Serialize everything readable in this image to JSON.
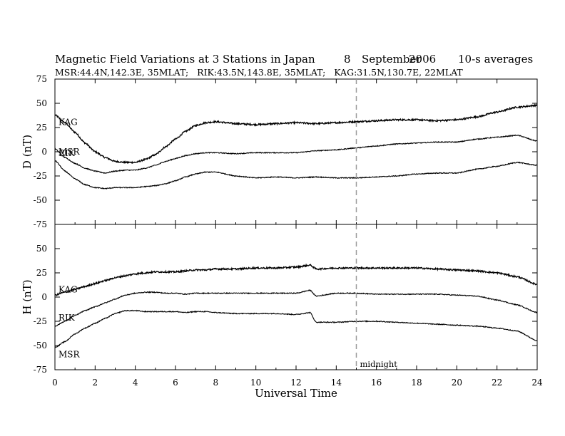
{
  "header": {
    "title": "Magnetic Field Variations at 3 Stations in Japan",
    "date_day": "8",
    "date_month": "September",
    "date_year": "2006",
    "averaging": "10-s averages",
    "stations_line": "MSR:44.4N,142.3E, 35MLAT;   RIK:43.5N,143.8E, 35MLAT;   KAG:31.5N,130.7E, 22MLAT"
  },
  "x_axis": {
    "label": "Universal Time",
    "ticks": [
      "0",
      "2",
      "4",
      "6",
      "8",
      "10",
      "12",
      "14",
      "16",
      "18",
      "20",
      "22",
      "24"
    ]
  },
  "y_ticks": [
    "75",
    "50",
    "25",
    "0",
    "-25",
    "-50",
    "-75"
  ],
  "annotation": {
    "label": "midnight",
    "x_value": 15
  },
  "colors": {
    "lines": "#000000",
    "midnight_marker": "#999999"
  },
  "chart_data": [
    {
      "type": "line",
      "ylabel": "D (nT)",
      "xlim": [
        0,
        24
      ],
      "ylim": [
        -75,
        75
      ],
      "grid": false,
      "series": [
        {
          "name": "KAG",
          "x": [
            0,
            0.5,
            1,
            1.5,
            2,
            2.5,
            3,
            3.5,
            4,
            4.5,
            5,
            5.5,
            6,
            6.5,
            7,
            7.5,
            8,
            9,
            10,
            11,
            12,
            13,
            14,
            15,
            16,
            17,
            18,
            19,
            20,
            21,
            22,
            23,
            24
          ],
          "y": [
            38,
            30,
            20,
            9,
            0,
            -6,
            -10,
            -11,
            -11,
            -8,
            -3,
            5,
            13,
            21,
            27,
            30,
            31,
            29,
            28,
            29,
            30,
            29,
            30,
            31,
            32,
            33,
            33,
            32,
            33,
            36,
            41,
            46,
            48
          ]
        },
        {
          "name": "RIK",
          "x": [
            0,
            0.5,
            1,
            1.5,
            2,
            2.5,
            3,
            3.5,
            4,
            4.5,
            5,
            5.5,
            6,
            6.5,
            7,
            7.5,
            8,
            9,
            10,
            11,
            12,
            13,
            14,
            15,
            16,
            17,
            18,
            19,
            20,
            21,
            22,
            23,
            24
          ],
          "y": [
            3,
            -6,
            -12,
            -17,
            -20,
            -22,
            -20,
            -19,
            -19,
            -17,
            -14,
            -10,
            -7,
            -4,
            -2,
            -1,
            -1,
            -2,
            -1,
            -1,
            -1,
            1,
            2,
            4,
            6,
            8,
            9,
            10,
            10,
            13,
            15,
            17,
            11
          ]
        },
        {
          "name": "MSR",
          "x": [
            0,
            0.5,
            1,
            1.5,
            2,
            2.5,
            3,
            3.5,
            4,
            4.5,
            5,
            5.5,
            6,
            6.5,
            7,
            7.5,
            8,
            9,
            10,
            11,
            12,
            13,
            14,
            15,
            16,
            17,
            18,
            19,
            20,
            21,
            22,
            23,
            24
          ],
          "y": [
            -9,
            -20,
            -28,
            -34,
            -37,
            -38,
            -37,
            -37,
            -37,
            -36,
            -35,
            -33,
            -30,
            -26,
            -23,
            -21,
            -21,
            -25,
            -27,
            -26,
            -27,
            -26,
            -27,
            -27,
            -26,
            -25,
            -23,
            -22,
            -22,
            -18,
            -15,
            -11,
            -14
          ]
        }
      ]
    },
    {
      "type": "line",
      "ylabel": "H (nT)",
      "xlim": [
        0,
        24
      ],
      "ylim": [
        -75,
        75
      ],
      "grid": false,
      "series": [
        {
          "name": "KAG",
          "x": [
            0,
            0.5,
            1,
            1.5,
            2,
            2.5,
            3,
            3.5,
            4,
            4.5,
            5,
            5.5,
            6,
            6.5,
            7,
            7.5,
            8,
            9,
            10,
            11,
            12,
            12.7,
            13,
            14,
            15,
            16,
            17,
            18,
            19,
            20,
            21,
            22,
            23,
            24
          ],
          "y": [
            2,
            5,
            8,
            11,
            14,
            17,
            20,
            22,
            24,
            25,
            26,
            26,
            26,
            27,
            28,
            28,
            29,
            29,
            30,
            30,
            31,
            33,
            29,
            30,
            30,
            30,
            30,
            30,
            29,
            28,
            27,
            25,
            21,
            13
          ]
        },
        {
          "name": "RIK",
          "x": [
            0,
            0.5,
            1,
            1.5,
            2,
            2.5,
            3,
            3.5,
            4,
            4.5,
            5,
            5.5,
            6,
            6.5,
            7,
            7.5,
            8,
            9,
            10,
            11,
            12,
            12.7,
            13,
            14,
            15,
            16,
            17,
            18,
            19,
            20,
            21,
            22,
            23,
            24
          ],
          "y": [
            -30,
            -25,
            -19,
            -14,
            -10,
            -6,
            -2,
            2,
            4,
            5,
            5,
            4,
            4,
            3,
            4,
            4,
            4,
            4,
            4,
            4,
            4,
            7,
            1,
            4,
            4,
            3,
            3,
            3,
            3,
            2,
            1,
            -3,
            -8,
            -16
          ]
        },
        {
          "name": "MSR",
          "x": [
            0,
            0.5,
            1,
            1.5,
            2,
            2.5,
            3,
            3.5,
            4,
            4.5,
            5,
            5.5,
            6,
            6.5,
            7,
            7.5,
            8,
            9,
            10,
            11,
            12,
            12.7,
            13,
            14,
            15,
            16,
            17,
            18,
            19,
            20,
            21,
            22,
            23,
            24
          ],
          "y": [
            -52,
            -46,
            -38,
            -32,
            -27,
            -22,
            -17,
            -14,
            -14,
            -15,
            -15,
            -15,
            -15,
            -16,
            -15,
            -15,
            -16,
            -17,
            -17,
            -17,
            -18,
            -16,
            -26,
            -26,
            -25,
            -25,
            -26,
            -27,
            -28,
            -29,
            -30,
            -32,
            -35,
            -45
          ]
        }
      ]
    }
  ]
}
